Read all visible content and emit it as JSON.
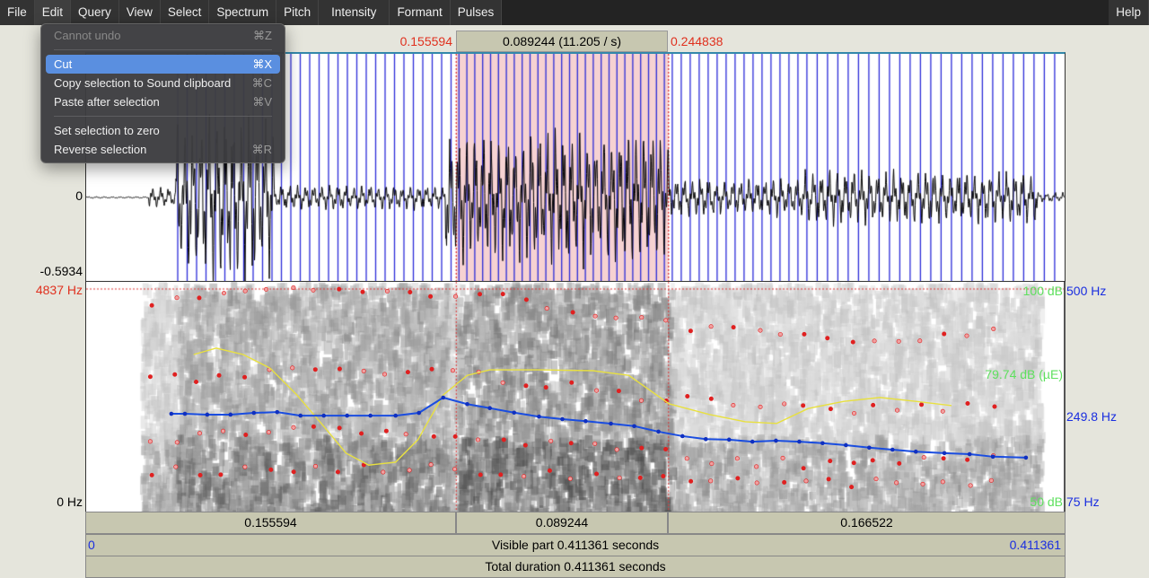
{
  "menubar": {
    "items": [
      "File",
      "Edit",
      "Query",
      "View",
      "Select",
      "Spectrum",
      "Pitch",
      "Intensity",
      "Formant",
      "Pulses"
    ],
    "help": "Help",
    "active": "Edit"
  },
  "edit_menu": {
    "items": [
      {
        "label": "Cannot undo",
        "shortcut": "⌘Z",
        "disabled": true
      },
      {
        "label": "Cut",
        "shortcut": "⌘X",
        "highlighted": true
      },
      {
        "label": "Copy selection to Sound clipboard",
        "shortcut": "⌘C"
      },
      {
        "label": "Paste after selection",
        "shortcut": "⌘V"
      },
      {
        "label": "Set selection to zero",
        "shortcut": ""
      },
      {
        "label": "Reverse selection",
        "shortcut": "⌘R"
      }
    ]
  },
  "selection": {
    "start": "0.155594",
    "length": "0.089244 (11.205 / s)",
    "end": "0.244838",
    "start_s": 0.155594,
    "end_s": 0.244838
  },
  "waveform": {
    "zero_label": "0",
    "min_label": "-0.5934"
  },
  "spectrogram": {
    "top_label": "4837 Hz",
    "bottom_label": "0 Hz"
  },
  "intensity": {
    "top_label": "100 dB",
    "mid_label": "79.74 dB (µE)",
    "bottom_label": "50 dB",
    "range_db": [
      50,
      100
    ],
    "time_s": [
      0.0452,
      0.0547,
      0.066,
      0.0773,
      0.0886,
      0.0999,
      0.1093,
      0.1188,
      0.1301,
      0.1395,
      0.1501,
      0.1602,
      0.1697,
      0.1904,
      0.213,
      0.2281,
      0.2451,
      0.262,
      0.2771,
      0.2903,
      0.3035,
      0.3186,
      0.3337,
      0.3488,
      0.3638
    ],
    "db": [
      84.6,
      86.1,
      84.6,
      81.4,
      75.1,
      67.7,
      61.4,
      58.6,
      59.3,
      64.6,
      75.1,
      79.7,
      81.0,
      81.0,
      80.8,
      79.7,
      73.0,
      70.5,
      68.8,
      68.4,
      71.9,
      73.6,
      74.5,
      73.6,
      72.6
    ]
  },
  "pitch": {
    "top_label": "500 Hz",
    "mid_label": "249.8 Hz",
    "bottom_label": "75 Hz",
    "range_hz": [
      75,
      500
    ],
    "time_s": [
      0.0358,
      0.0415,
      0.0509,
      0.0607,
      0.0705,
      0.0803,
      0.0901,
      0.0999,
      0.1097,
      0.1195,
      0.1301,
      0.1399,
      0.1501,
      0.1602,
      0.1697,
      0.1799,
      0.1904,
      0.2002,
      0.21,
      0.2206,
      0.2304,
      0.2406,
      0.2507,
      0.2605,
      0.2703,
      0.2801,
      0.29,
      0.2998,
      0.3096,
      0.3194,
      0.3292,
      0.339,
      0.3488,
      0.3608,
      0.3714,
      0.3812,
      0.3951
    ],
    "hz": [
      250.7,
      250.7,
      249,
      249,
      252.5,
      254,
      247,
      247,
      247,
      247,
      247,
      252.5,
      283,
      270,
      262,
      253,
      245,
      240,
      236,
      231,
      226,
      215,
      206,
      200,
      199,
      195,
      197,
      195,
      192,
      188,
      183,
      179,
      175,
      172,
      170,
      165,
      163
    ]
  },
  "colors": {
    "selection": "#f6d2d2",
    "pitch": "#1a4de0",
    "intensity": "#e8e040",
    "formant": "#e02020",
    "pulses": "#2a2ad8"
  },
  "bottom": {
    "seg_before": "0.155594",
    "seg_sel": "0.089244",
    "seg_after": "0.166522",
    "visible_start": "0",
    "visible_end": "0.411361",
    "visible": "Visible part 0.411361 seconds",
    "total": "Total duration 0.411361 seconds",
    "duration_s": 0.411361
  }
}
